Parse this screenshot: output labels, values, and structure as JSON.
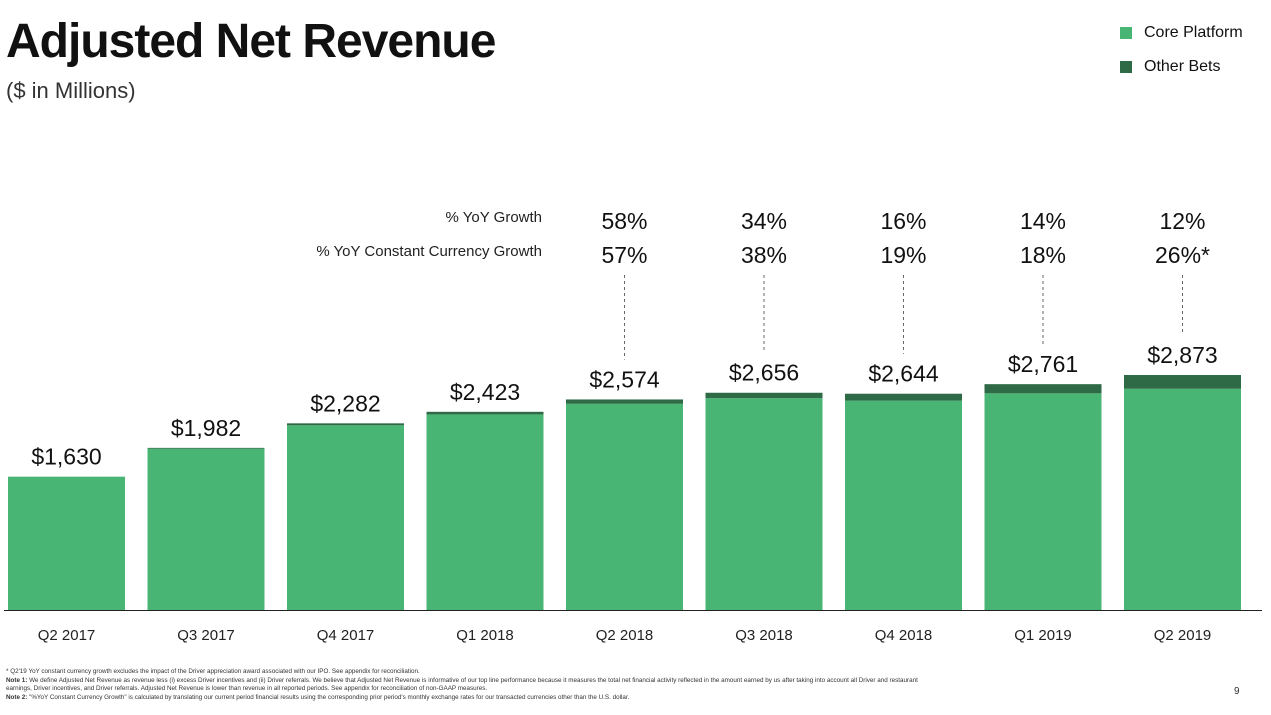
{
  "slide": {
    "title": "Adjusted Net Revenue",
    "subtitle": "($ in Millions)",
    "page_number": "9"
  },
  "growth_rows": {
    "yoy_label": "% YoY Growth",
    "cc_label": "% YoY Constant Currency Growth"
  },
  "footnotes": {
    "star": "* Q2'19 YoY constant currency growth excludes the impact of the Driver appreciation award associated with our IPO. See appendix for reconciliation.",
    "note1_label": "Note 1:",
    "note1": " We define Adjusted Net Revenue as revenue less (i) excess Driver incentives and (ii) Driver referrals. We believe that Adjusted Net Revenue is informative of our top line performance because it measures the total net financial activity reflected in the amount earned by us after taking into account all Driver and restaurant earnings, Driver incentives, and Driver referrals. Adjusted Net Revenue is lower than revenue in all reported periods. See appendix for reconciliation of non-GAAP measures.",
    "note2_label": "Note 2:",
    "note2": " \"%YoY Constant Currency Growth\" is calculated by translating our current period financial results using the corresponding prior period's monthly exchange rates for our transacted currencies other than the U.S. dollar."
  },
  "colors": {
    "core_platform": "#48b574",
    "other_bets": "#2d6a45",
    "axis": "#222222",
    "dashed_line": "#666666"
  },
  "chart_data": {
    "type": "bar",
    "stacked": true,
    "title": "Adjusted Net Revenue",
    "subtitle": "($ in Millions)",
    "categories": [
      "Q2 2017",
      "Q3 2017",
      "Q4 2017",
      "Q1 2018",
      "Q2 2018",
      "Q3 2018",
      "Q4 2018",
      "Q1 2019",
      "Q2 2019"
    ],
    "series": [
      {
        "name": "Core Platform",
        "values": [
          1630,
          1972,
          2258,
          2391,
          2521,
          2590,
          2559,
          2649,
          2705
        ]
      },
      {
        "name": "Other Bets",
        "values": [
          0,
          10,
          24,
          32,
          53,
          66,
          85,
          112,
          168
        ]
      }
    ],
    "total_labels": [
      "$1,630",
      "$1,982",
      "$2,282",
      "$2,423",
      "$2,574",
      "$2,656",
      "$2,644",
      "$2,761",
      "$2,873"
    ],
    "yoy_growth": [
      "",
      "",
      "",
      "",
      "58%",
      "34%",
      "16%",
      "14%",
      "12%"
    ],
    "yoy_cc_growth": [
      "",
      "",
      "",
      "",
      "57%",
      "38%",
      "19%",
      "18%",
      "26%*"
    ],
    "ylim": [
      0,
      2873
    ],
    "grid": false,
    "legend_position": "top-right"
  }
}
